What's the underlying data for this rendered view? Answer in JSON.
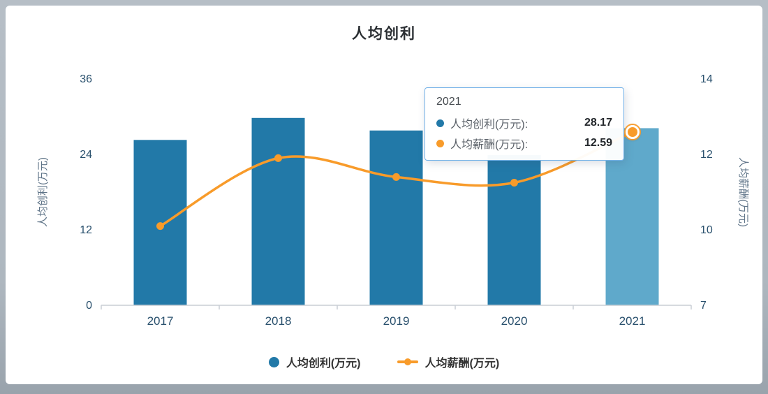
{
  "title": "人均创利",
  "colors": {
    "bar": "#2279a8",
    "bar_highlight": "#5fa9cb",
    "line": "#f89b2a",
    "axis_text": "#29506d",
    "axis_name": "#5f7488",
    "axis_line": "#c9ced4",
    "tooltip_border": "#74b2e8"
  },
  "chart_data": {
    "type": "bar",
    "categories": [
      "2017",
      "2018",
      "2019",
      "2020",
      "2021"
    ],
    "series": [
      {
        "name": "人均创利(万元)",
        "type": "bar",
        "axis": "left",
        "values": [
          26.3,
          29.8,
          27.8,
          23.9,
          28.17
        ]
      },
      {
        "name": "人均薪酬(万元)",
        "type": "line",
        "axis": "right",
        "values": [
          10.1,
          11.9,
          11.4,
          11.25,
          12.59
        ]
      }
    ],
    "title": "人均创利",
    "left_axis": {
      "name": "人均创利(万元)",
      "ticks": [
        0,
        12,
        24,
        36
      ]
    },
    "right_axis": {
      "name": "人均薪酬(万元)",
      "ticks": [
        7,
        10,
        12,
        14
      ]
    },
    "grid": false,
    "legend_position": "bottom",
    "highlight_index": 4
  },
  "tooltip": {
    "title": "2021",
    "rows": [
      {
        "label": "人均创利(万元):",
        "value": "28.17",
        "color": "#2279a8"
      },
      {
        "label": "人均薪酬(万元):",
        "value": "12.59",
        "color": "#f89b2a"
      }
    ]
  },
  "legend": [
    {
      "label": "人均创利(万元)",
      "marker": "circle",
      "color": "#2279a8"
    },
    {
      "label": "人均薪酬(万元)",
      "marker": "line-dot",
      "color": "#f89b2a"
    }
  ]
}
